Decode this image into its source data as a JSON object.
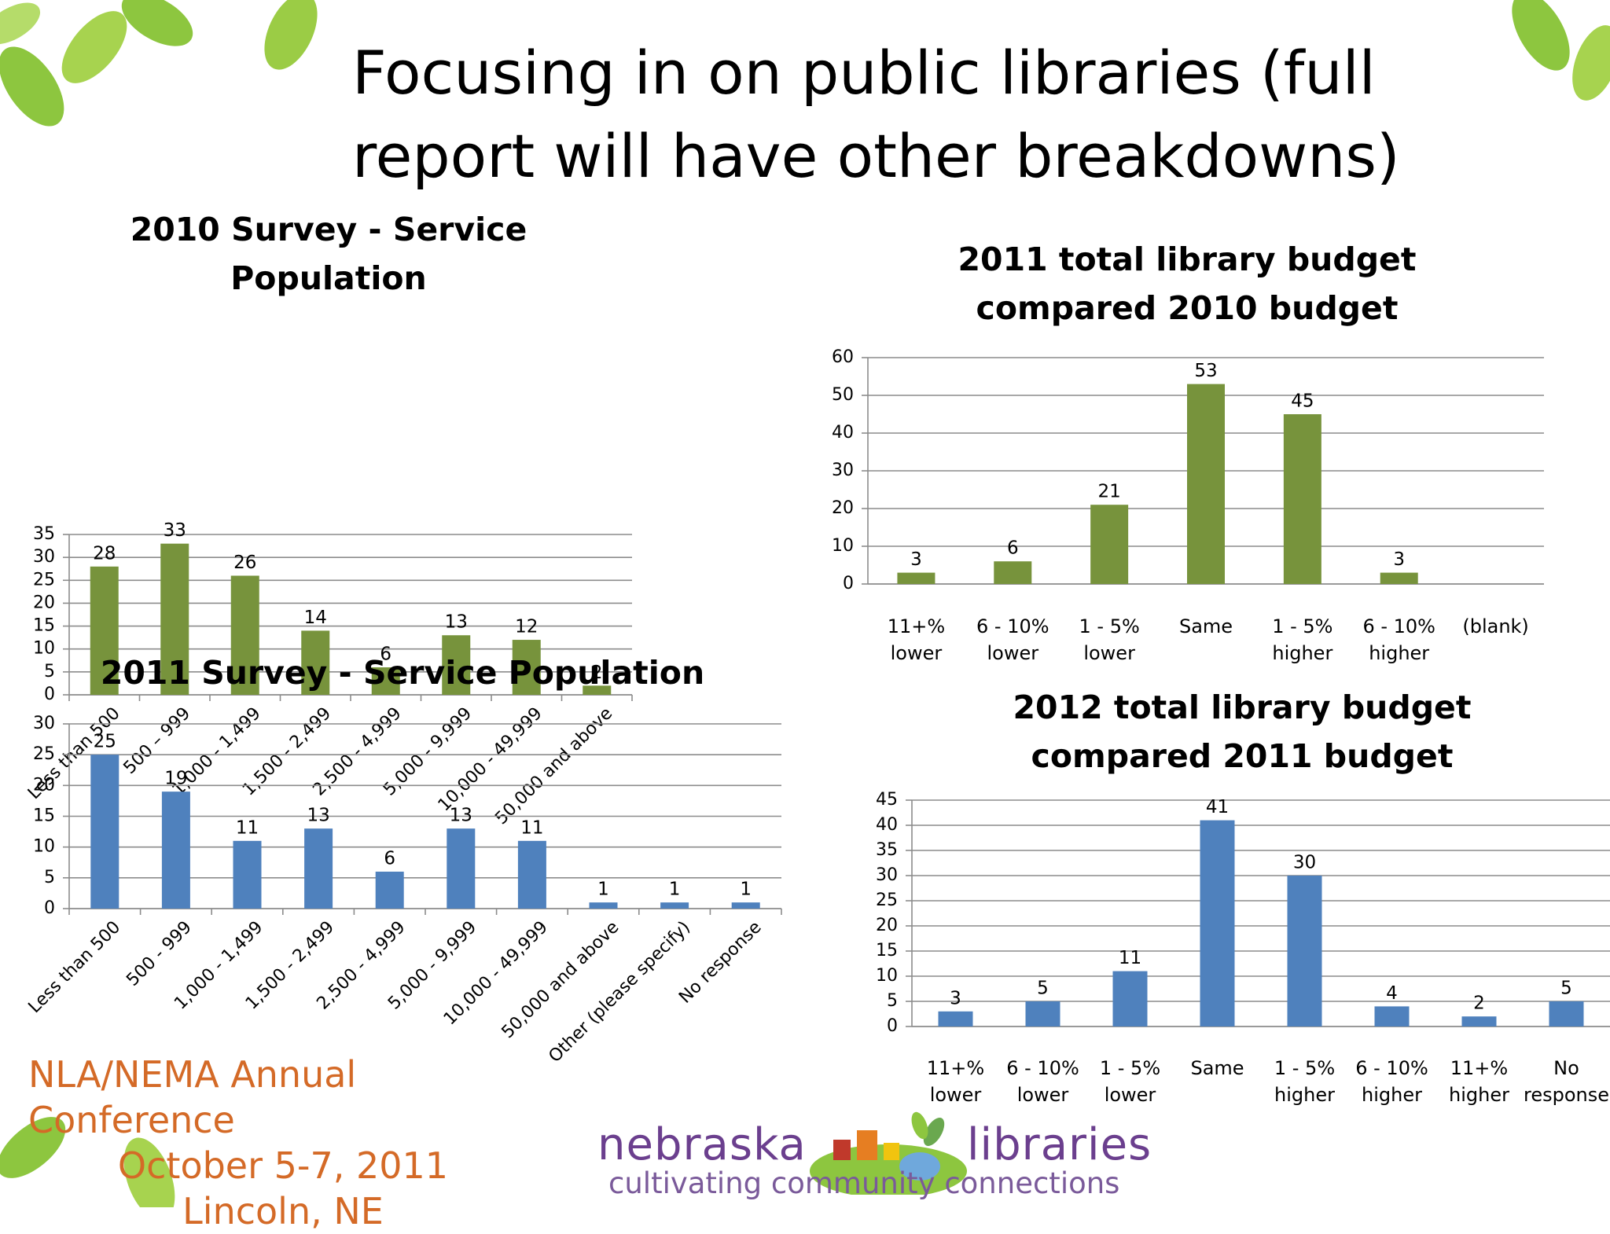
{
  "slide": {
    "title_line1": "Focusing in on public libraries (full",
    "title_line2": "report will have other breakdowns)"
  },
  "colors": {
    "green_bar": "#77933c",
    "blue_bar": "#4f81bd",
    "grid": "#888888",
    "leaf": "#8dc63f",
    "conference_text": "#d46a27",
    "logo_text": "#6b3f8e"
  },
  "conference": {
    "line1": "NLA/NEMA Annual Conference",
    "line2": "October 5-7, 2011",
    "line3": "Lincoln, NE"
  },
  "logo": {
    "word1": "nebraska",
    "word2": "libraries",
    "tagline": "cultivating community connections"
  },
  "chart_data": [
    {
      "type": "bar",
      "title": [
        "2010 Survey - Service",
        "Population"
      ],
      "categories": [
        "Less than 500",
        "500 – 999",
        "1,000 - 1,499",
        "1,500 - 2,499",
        "2,500 - 4,999",
        "5,000 - 9,999",
        "10,000 - 49,999",
        "50,000 and above"
      ],
      "values": [
        28,
        33,
        26,
        14,
        6,
        13,
        12,
        2
      ],
      "ylim": [
        0,
        35
      ],
      "yticks": [
        0,
        5,
        10,
        15,
        20,
        25,
        30,
        35
      ],
      "xlabel": "",
      "ylabel": "",
      "grid": true,
      "legend": "none",
      "label_style": "rotated",
      "color": "#77933c"
    },
    {
      "type": "bar",
      "title": [
        "2011 total library budget",
        "compared 2010 budget"
      ],
      "categories": [
        [
          "11+%",
          "lower"
        ],
        [
          "6 - 10%",
          "lower"
        ],
        [
          "1 - 5%",
          "lower"
        ],
        [
          "Same"
        ],
        [
          "1 - 5%",
          "higher"
        ],
        [
          "6 - 10%",
          "higher"
        ],
        [
          "(blank)"
        ]
      ],
      "values": [
        3,
        6,
        21,
        53,
        45,
        3,
        null
      ],
      "ylim": [
        0,
        60
      ],
      "yticks": [
        0,
        10,
        20,
        30,
        40,
        50,
        60
      ],
      "xlabel": "",
      "ylabel": "",
      "grid": true,
      "legend": "none",
      "label_style": "wrapped",
      "color": "#77933c"
    },
    {
      "type": "bar",
      "title": [
        "2011 Survey - Service Population"
      ],
      "categories": [
        "Less than 500",
        "500 - 999",
        "1,000 - 1,499",
        "1,500 - 2,499",
        "2,500 - 4,999",
        "5,000 - 9,999",
        "10,000 - 49,999",
        "50,000 and above",
        "Other (please specify)",
        "No response"
      ],
      "values": [
        25,
        19,
        11,
        13,
        6,
        13,
        11,
        1,
        1,
        1
      ],
      "ylim": [
        0,
        30
      ],
      "yticks": [
        0,
        5,
        10,
        15,
        20,
        25,
        30
      ],
      "xlabel": "",
      "ylabel": "",
      "grid": true,
      "legend": "none",
      "label_style": "rotated",
      "color": "#4f81bd"
    },
    {
      "type": "bar",
      "title": [
        "2012 total library budget",
        "compared 2011 budget"
      ],
      "categories": [
        [
          "11+%",
          "lower"
        ],
        [
          "6 - 10%",
          "lower"
        ],
        [
          "1 - 5%",
          "lower"
        ],
        [
          "Same"
        ],
        [
          "1 - 5%",
          "higher"
        ],
        [
          "6 - 10%",
          "higher"
        ],
        [
          "11+%",
          "higher"
        ],
        [
          "No",
          "response"
        ]
      ],
      "values": [
        3,
        5,
        11,
        41,
        30,
        4,
        2,
        5
      ],
      "ylim": [
        0,
        45
      ],
      "yticks": [
        0,
        5,
        10,
        15,
        20,
        25,
        30,
        35,
        40,
        45
      ],
      "xlabel": "",
      "ylabel": "",
      "grid": true,
      "legend": "none",
      "label_style": "wrapped",
      "color": "#4f81bd"
    }
  ]
}
